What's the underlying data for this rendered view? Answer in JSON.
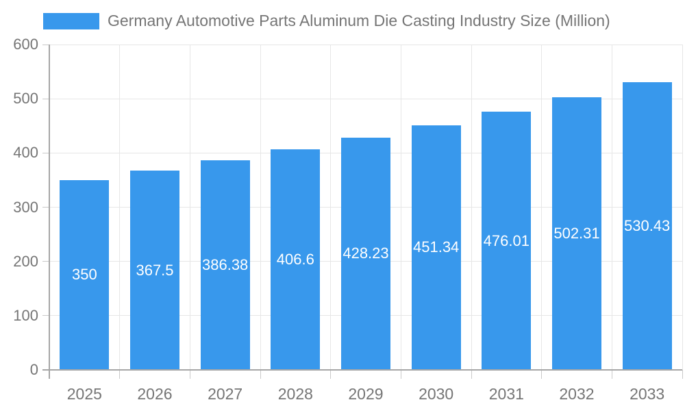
{
  "legend": {
    "label": "Germany Automotive Parts Aluminum Die Casting Industry Size (Million)"
  },
  "chart_data": {
    "type": "bar",
    "title": "Germany Automotive Parts Aluminum Die Casting Industry Size (Million)",
    "categories": [
      "2025",
      "2026",
      "2027",
      "2028",
      "2029",
      "2030",
      "2031",
      "2032",
      "2033"
    ],
    "values": [
      350,
      367.5,
      386.38,
      406.6,
      428.23,
      451.34,
      476.01,
      502.31,
      530.43
    ],
    "xlabel": "",
    "ylabel": "",
    "ylim": [
      0,
      600
    ],
    "y_ticks": [
      0,
      100,
      200,
      300,
      400,
      500,
      600
    ],
    "grid": true,
    "legend_position": "top-left",
    "colors": {
      "bar": "#3898EC",
      "value_label": "#FFFFFF",
      "axis_text": "#757575",
      "gridline": "#E6E6E6",
      "axis_line": "#A6A6A6",
      "tick": "#C9C9C9"
    }
  }
}
